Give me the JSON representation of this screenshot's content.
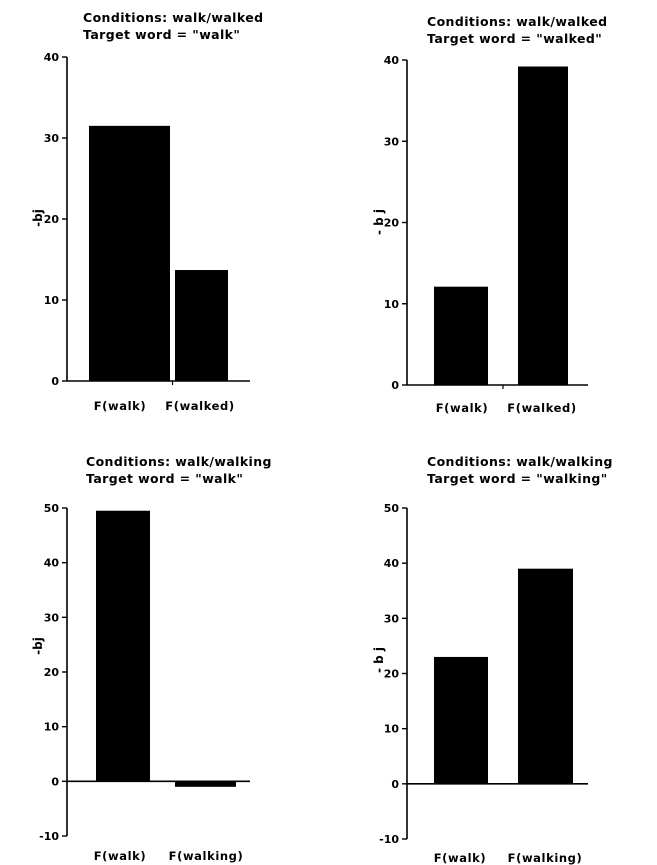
{
  "chart_data": [
    {
      "type": "bar",
      "title": [
        "Conditions:  walk/walked",
        "Target word  =  \"walk\""
      ],
      "ylabel": "-bj",
      "categories": [
        "F(walk)",
        "F(walked)"
      ],
      "values": [
        31.5,
        13.7
      ],
      "ylim": [
        0,
        40
      ],
      "yticks": [
        0,
        10,
        20,
        30,
        40
      ]
    },
    {
      "type": "bar",
      "title": [
        "Conditions:  walk/walked",
        "Target word  =  \"walked\""
      ],
      "ylabel": "- b j",
      "categories": [
        "F(walk)",
        "F(walked)"
      ],
      "values": [
        12.1,
        39.2
      ],
      "ylim": [
        0,
        40
      ],
      "yticks": [
        0,
        10,
        20,
        30,
        40
      ]
    },
    {
      "type": "bar",
      "title": [
        "Conditions:  walk/walking",
        "Target word  =  \"walk\""
      ],
      "ylabel": "-bj",
      "categories": [
        "F(walk)",
        "F(walking)"
      ],
      "values": [
        49.5,
        -1.0
      ],
      "ylim": [
        -10,
        50
      ],
      "yticks": [
        -10,
        0,
        10,
        20,
        30,
        40,
        50
      ]
    },
    {
      "type": "bar",
      "title": [
        "Conditions:  walk/walking",
        "Target word  =  \"walking\""
      ],
      "ylabel": "- b j",
      "categories": [
        "F(walk)",
        "F(walking)"
      ],
      "values": [
        23.0,
        39.0
      ],
      "ylim": [
        -10,
        50
      ],
      "yticks": [
        -10,
        0,
        10,
        20,
        30,
        40,
        50
      ]
    }
  ]
}
